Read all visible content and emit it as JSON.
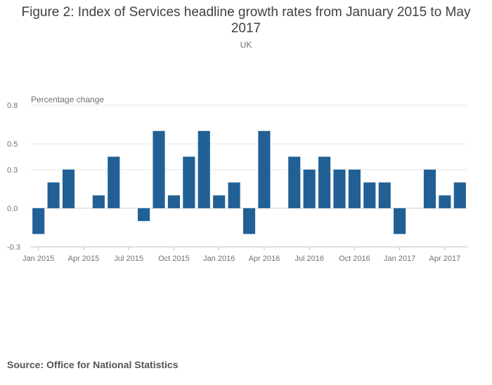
{
  "title": "Figure 2: Index of Services headline growth rates from January 2015 to May 2017",
  "subtitle": "UK",
  "source": "Source: Office for National Statistics",
  "colors": {
    "bar": "#206095",
    "grid": "#e6e6e6",
    "axis": "#bfbfbf",
    "text": "#707071"
  },
  "chart_data": {
    "type": "bar",
    "ylabel": "Percentage change",
    "xlabel": "",
    "ylim": [
      -0.3,
      0.8
    ],
    "yticks": [
      -0.3,
      0.0,
      0.3,
      0.5,
      0.8
    ],
    "ytick_labels": [
      "-0.3",
      "0.0",
      "0.3",
      "0.5",
      "0.8"
    ],
    "categories": [
      "Jan 2015",
      "Feb 2015",
      "Mar 2015",
      "Apr 2015",
      "May 2015",
      "Jun 2015",
      "Jul 2015",
      "Aug 2015",
      "Sep 2015",
      "Oct 2015",
      "Nov 2015",
      "Dec 2015",
      "Jan 2016",
      "Feb 2016",
      "Mar 2016",
      "Apr 2016",
      "May 2016",
      "Jun 2016",
      "Jul 2016",
      "Aug 2016",
      "Sep 2016",
      "Oct 2016",
      "Nov 2016",
      "Dec 2016",
      "Jan 2017",
      "Feb 2017",
      "Mar 2017",
      "Apr 2017",
      "May 2017"
    ],
    "values": [
      -0.2,
      0.2,
      0.3,
      0.0,
      0.1,
      0.4,
      0.0,
      -0.1,
      0.6,
      0.1,
      0.4,
      0.6,
      0.1,
      0.2,
      -0.2,
      0.6,
      0.0,
      0.4,
      0.3,
      0.4,
      0.3,
      0.3,
      0.2,
      0.2,
      -0.2,
      0.0,
      0.3,
      0.1,
      0.2
    ],
    "xtick_labels": [
      {
        "index": 0,
        "label": "Jan 2015"
      },
      {
        "index": 3,
        "label": "Apr 2015"
      },
      {
        "index": 6,
        "label": "Jul 2015"
      },
      {
        "index": 9,
        "label": "Oct 2015"
      },
      {
        "index": 12,
        "label": "Jan 2016"
      },
      {
        "index": 15,
        "label": "Apr 2016"
      },
      {
        "index": 18,
        "label": "Jul 2016"
      },
      {
        "index": 21,
        "label": "Oct 2016"
      },
      {
        "index": 24,
        "label": "Jan 2017"
      },
      {
        "index": 27,
        "label": "Apr 2017"
      }
    ],
    "legend": "none",
    "grid": true
  }
}
